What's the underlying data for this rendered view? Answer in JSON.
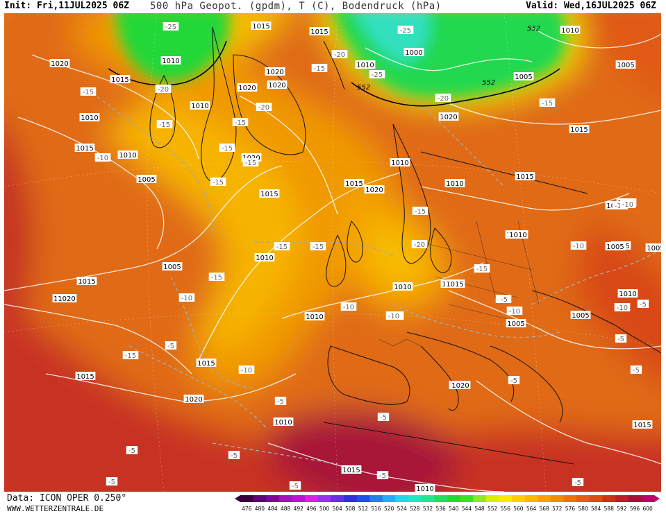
{
  "header": {
    "init": "Init: Fri,11JUL2025 06Z",
    "title": "500 hPa Geopot. (gpdm), T (C), Bodendruck (hPa)",
    "valid": "Valid: Wed,16JUL2025 06Z"
  },
  "footer": {
    "data_source": "Data: ICON OPER 0.250°",
    "website": "WWW.WETTERZENTRALE.DE"
  },
  "colorbar": {
    "values": [
      "476",
      "480",
      "484",
      "488",
      "492",
      "496",
      "500",
      "504",
      "508",
      "512",
      "516",
      "520",
      "524",
      "528",
      "532",
      "536",
      "540",
      "544",
      "548",
      "552",
      "556",
      "560",
      "564",
      "568",
      "572",
      "576",
      "580",
      "584",
      "588",
      "592",
      "596",
      "600"
    ],
    "colors": [
      "#3a0040",
      "#5a0a6e",
      "#7a0a98",
      "#9a14c0",
      "#c010d8",
      "#e020e8",
      "#9a30f0",
      "#6a2ee8",
      "#3030e0",
      "#2050ec",
      "#2080f0",
      "#20b0f0",
      "#20d8e8",
      "#20e8c0",
      "#20e890",
      "#20e060",
      "#20d838",
      "#40e020",
      "#90e820",
      "#d8f000",
      "#ffe800",
      "#ffd000",
      "#ffb800",
      "#ffa000",
      "#f88800",
      "#f07000",
      "#e85c10",
      "#e04a14",
      "#d03018",
      "#c01c28",
      "#a81038",
      "#c0006a"
    ]
  },
  "map_labels": {
    "isobars": [
      "1015",
      "1020",
      "1015",
      "1010",
      "1010",
      "1010",
      "1015",
      "1010",
      "1005",
      "1020",
      "1020",
      "1020",
      "1010",
      "1015",
      "1010",
      "1005",
      "1005",
      "1020",
      "1015",
      "1015",
      "1010",
      "1015",
      "1020",
      "1020",
      "1010",
      "1015",
      "1010",
      "1010",
      "1000",
      "1005",
      "1005",
      "1010",
      "1005",
      "1005",
      "1005",
      "1010",
      "1010",
      "1010",
      "1005",
      "1005",
      "1010",
      "1015",
      "1010",
      "1015",
      "1015",
      "1020",
      "1010",
      "1010",
      "1015",
      "1010",
      "1015",
      "1020",
      "1010",
      "1015",
      "1020"
    ],
    "isotherms": [
      "-25",
      "-20",
      "-15",
      "-15",
      "-15",
      "-15",
      "-15",
      "-15",
      "-10",
      "-20",
      "-15",
      "-15",
      "-15",
      "-25",
      "-20",
      "-15",
      "-25",
      "-20",
      "-15",
      "-20",
      "-15",
      "-15",
      "-15",
      "-10",
      "-10",
      "-10",
      "-10",
      "-10",
      "-10",
      "-10",
      "-10",
      "-10",
      "-15",
      "-5",
      "-5",
      "-5",
      "-5",
      "-5",
      "-5",
      "-5",
      "-5",
      "-5",
      "-5",
      "-5",
      "-5",
      "-5",
      "-5",
      "-10"
    ],
    "geopotential": [
      "552",
      "552",
      "552"
    ]
  }
}
